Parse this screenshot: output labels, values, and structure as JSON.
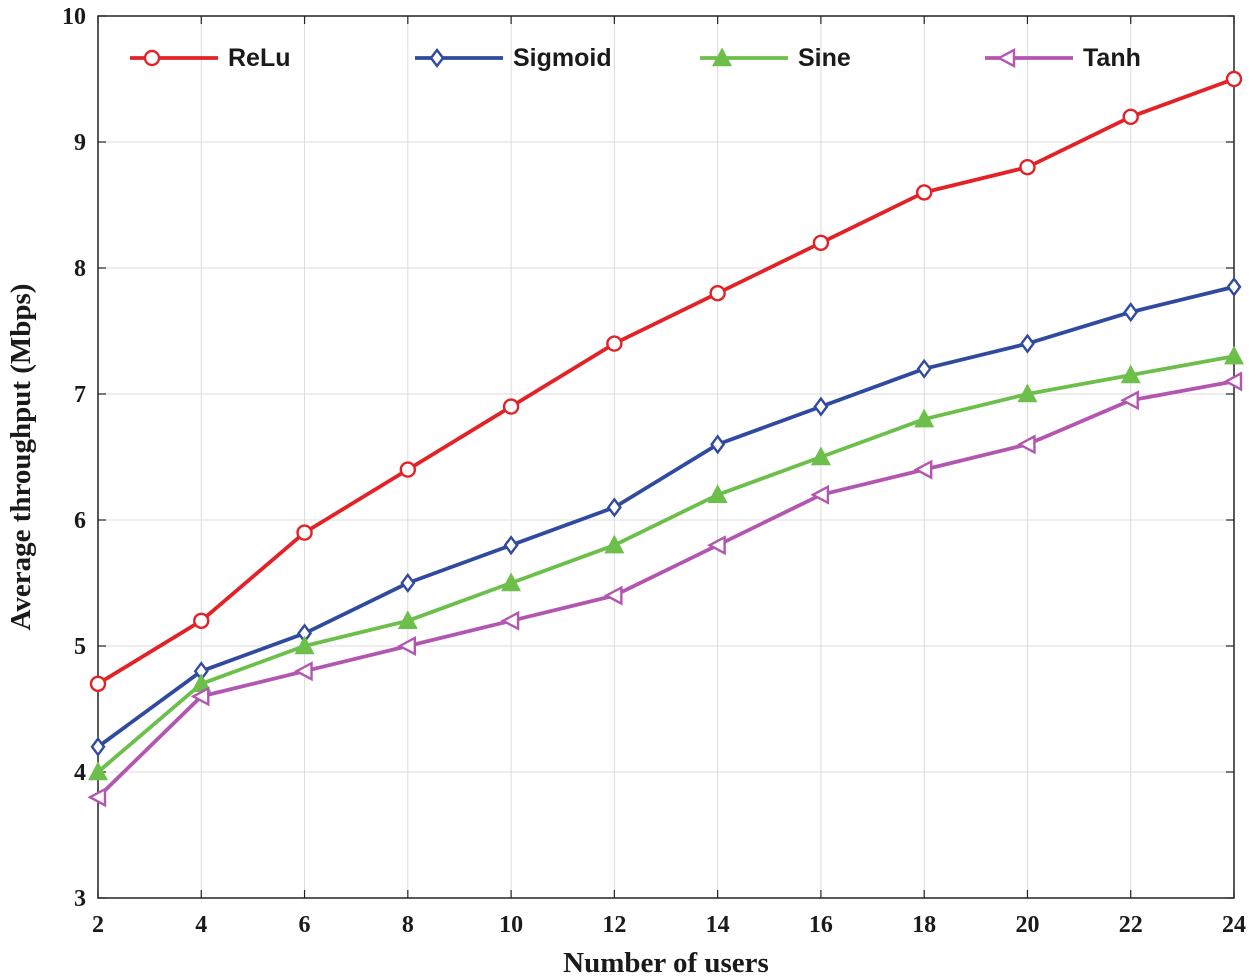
{
  "chart_data": {
    "type": "line",
    "title": "",
    "xlabel": "Number of users",
    "ylabel": "Average throughput (Mbps)",
    "x": [
      2,
      4,
      6,
      8,
      10,
      12,
      14,
      16,
      18,
      20,
      22,
      24
    ],
    "xlim": [
      2,
      24
    ],
    "ylim": [
      3,
      10
    ],
    "xticks": [
      2,
      4,
      6,
      8,
      10,
      12,
      14,
      16,
      18,
      20,
      22,
      24
    ],
    "yticks": [
      3,
      4,
      5,
      6,
      7,
      8,
      9,
      10
    ],
    "xtick_labels": [
      "2",
      "4",
      "6",
      "8",
      "10",
      "12",
      "14",
      "16",
      "18",
      "20",
      "22",
      "24"
    ],
    "ytick_labels": [
      "3",
      "4",
      "5",
      "6",
      "7",
      "8",
      "9",
      "10"
    ],
    "grid": true,
    "legend_position": "top",
    "series": [
      {
        "name": "ReLu",
        "color": "#e32227",
        "marker": "circle",
        "values": [
          4.7,
          5.2,
          5.9,
          6.4,
          6.9,
          7.4,
          7.8,
          8.2,
          8.6,
          8.8,
          9.2,
          9.5
        ]
      },
      {
        "name": "Sigmoid",
        "color": "#2f4a9e",
        "marker": "diamond",
        "values": [
          4.2,
          4.8,
          5.1,
          5.5,
          5.8,
          6.1,
          6.6,
          6.9,
          7.2,
          7.4,
          7.65,
          7.85
        ]
      },
      {
        "name": "Sine",
        "color": "#6cbf4a",
        "marker": "triangle-up",
        "values": [
          4.0,
          4.7,
          5.0,
          5.2,
          5.5,
          5.8,
          6.2,
          6.5,
          6.8,
          7.0,
          7.15,
          7.3
        ]
      },
      {
        "name": "Tanh",
        "color": "#b356b0",
        "marker": "triangle-left",
        "values": [
          3.8,
          4.6,
          4.8,
          5.0,
          5.2,
          5.4,
          5.8,
          6.2,
          6.4,
          6.6,
          6.95,
          7.1
        ]
      }
    ]
  }
}
